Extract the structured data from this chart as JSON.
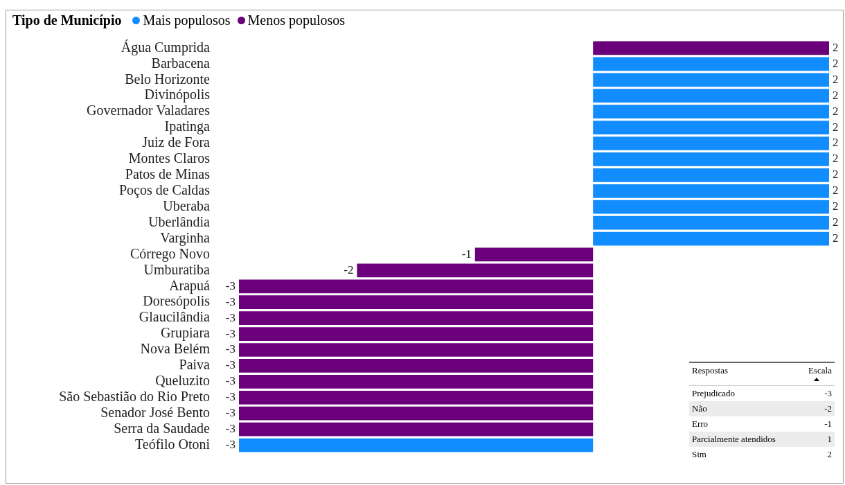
{
  "chart_data": {
    "type": "bar",
    "orientation": "horizontal",
    "legend_title": "Tipo de Município",
    "legend": "top left",
    "categories": [
      "Água Cumprida",
      "Barbacena",
      "Belo Horizonte",
      "Divinópolis",
      "Governador Valadares",
      "Ipatinga",
      "Juiz de Fora",
      "Montes Claros",
      "Patos de Minas",
      "Poços de Caldas",
      "Uberaba",
      "Uberlândia",
      "Varginha",
      "Córrego Novo",
      "Umburatiba",
      "Arapuá",
      "Doresópolis",
      "Glaucilândia",
      "Grupiara",
      "Nova Belém",
      "Paiva",
      "Queluzito",
      "São Sebastião do Rio Preto",
      "Senador José Bento",
      "Serra da Saudade",
      "Teófilo Otoni"
    ],
    "series": [
      {
        "name": "Mais populosos",
        "color": "#118dff",
        "values": [
          null,
          2,
          2,
          2,
          2,
          2,
          2,
          2,
          2,
          2,
          2,
          2,
          2,
          null,
          null,
          null,
          null,
          null,
          null,
          null,
          null,
          null,
          null,
          null,
          null,
          -3
        ]
      },
      {
        "name": "Menos populosos",
        "color": "#6b007b",
        "values": [
          2,
          null,
          null,
          null,
          null,
          null,
          null,
          null,
          null,
          null,
          null,
          null,
          null,
          -1,
          -2,
          -3,
          -3,
          -3,
          -3,
          -3,
          -3,
          -3,
          -3,
          -3,
          -3,
          null
        ]
      }
    ],
    "xlim": [
      -3,
      2
    ],
    "tick_labels": "y",
    "grid": false,
    "data_labels": true,
    "annotations": [
      "Respostas",
      "Escala",
      "Prejudicado",
      "-3",
      "Não",
      "-2",
      "Erro",
      "-1",
      "Parcialmente atendidos",
      "1",
      "Sim",
      "2"
    ]
  }
}
